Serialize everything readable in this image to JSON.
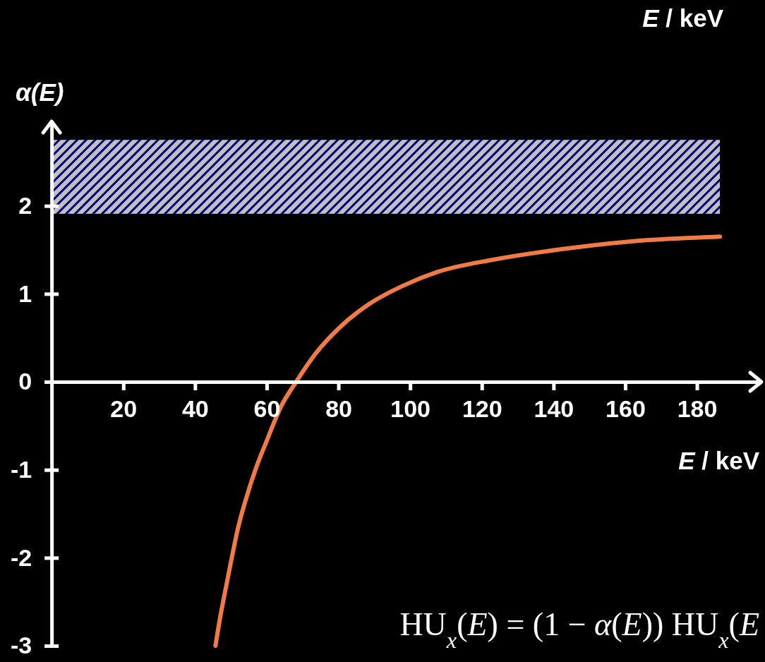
{
  "chart_data": {
    "type": "line",
    "xlabel": "E / keV",
    "ylabel": "α(E)",
    "annotations": [
      "E / keV",
      "HU$_{x}$(E) = (1 − α(E)) HU$_{x}$(E"
    ],
    "x": [
      45.7,
      47,
      48.5,
      50,
      52,
      54,
      57,
      60,
      64,
      68.2,
      73.6,
      80.4,
      88.8,
      97.9,
      107.7,
      123.4,
      144.7,
      165.9,
      186.4
    ],
    "series": [
      {
        "color": "#f27a45",
        "values": [
          -3,
          -2.68,
          -2.36,
          -2.05,
          -1.66,
          -1.36,
          -0.98,
          -0.67,
          -0.28,
          0,
          0.32,
          0.62,
          0.89,
          1.09,
          1.25,
          1.39,
          1.52,
          1.61,
          1.65
        ]
      }
    ],
    "xlim": [
      -2,
      198
    ],
    "ylim": [
      -3,
      2.96
    ],
    "xticks": [
      20,
      40,
      60,
      80,
      100,
      120,
      140,
      160,
      180
    ],
    "yticks": [
      -3,
      -2,
      -1,
      0,
      1,
      2
    ],
    "bands": [
      {
        "axis": "y",
        "from": 1.91,
        "to": 2.75,
        "color": "#c0c0c0"
      }
    ]
  }
}
